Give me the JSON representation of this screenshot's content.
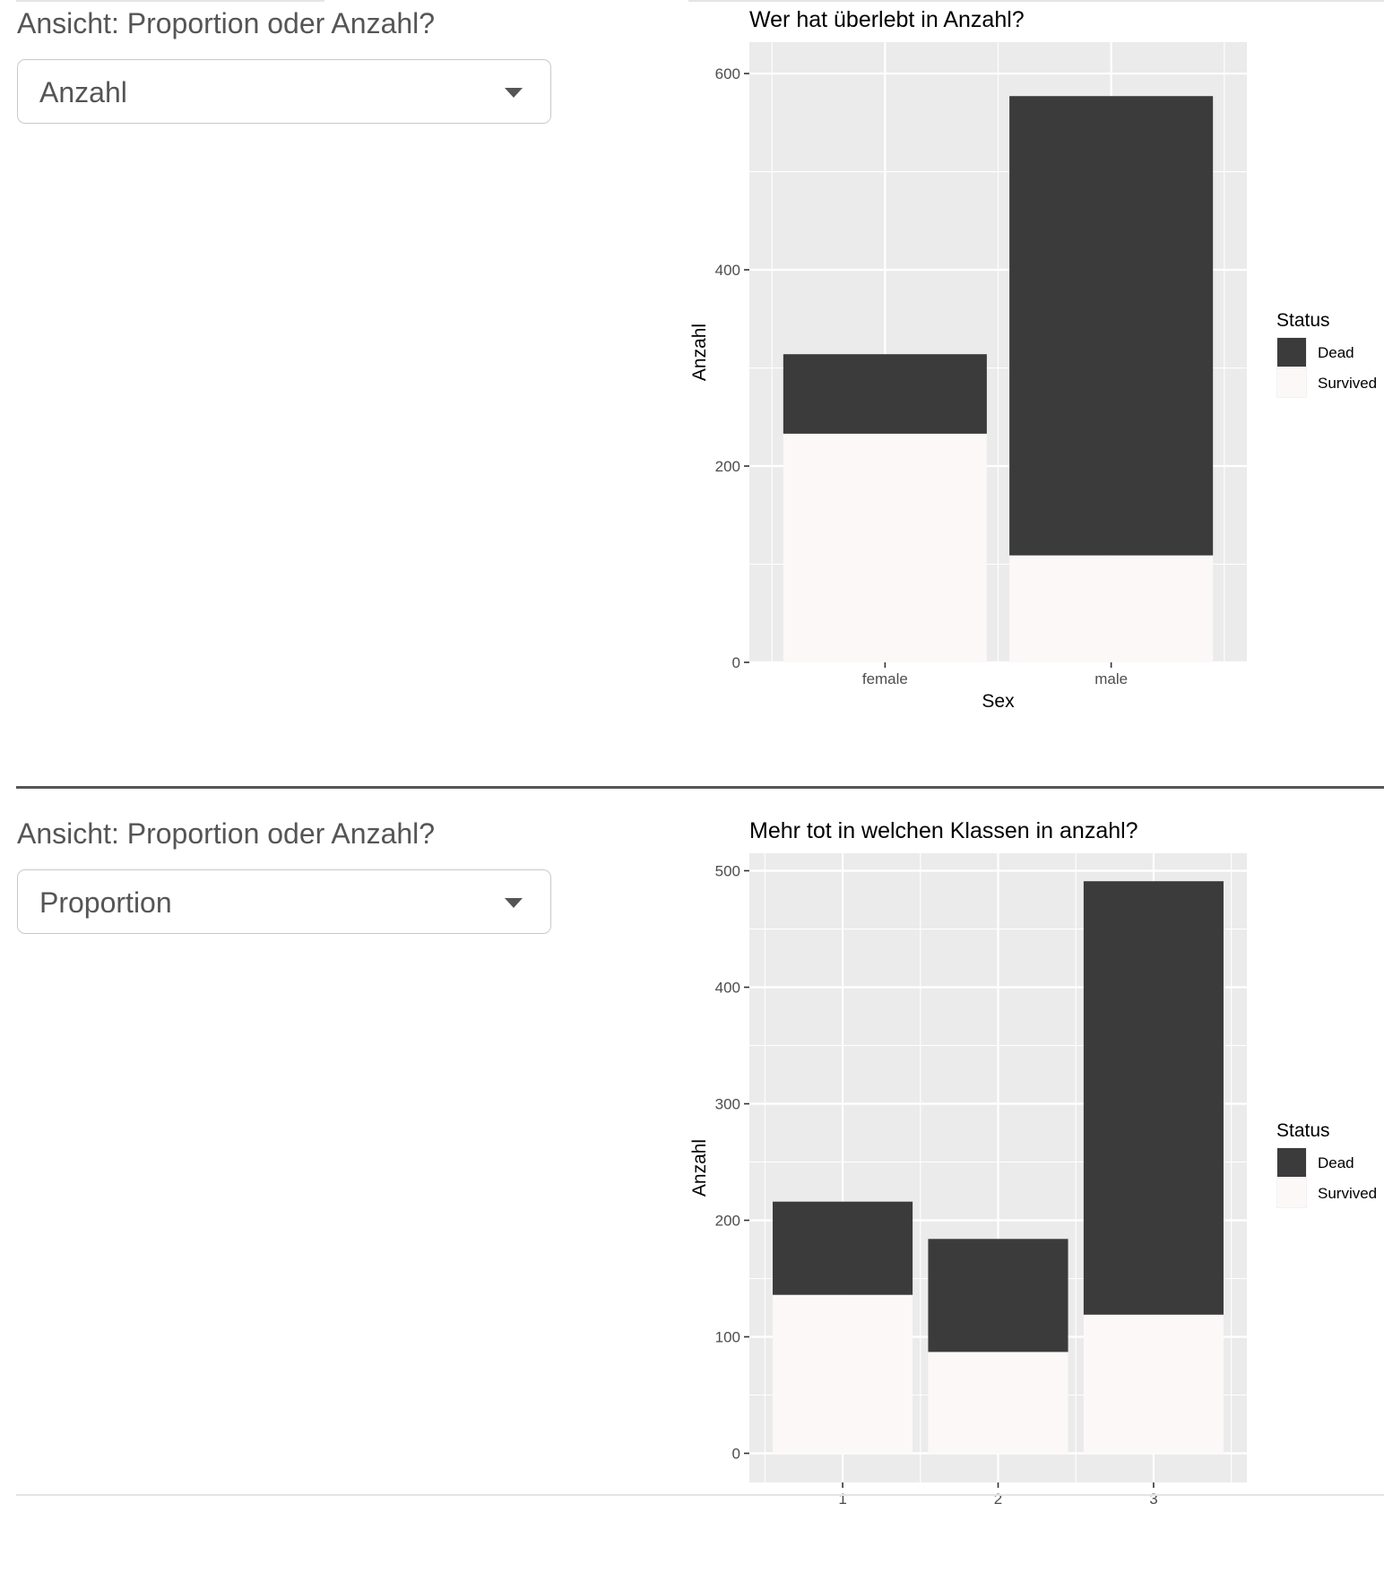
{
  "panels": [
    {
      "control_label": "Ansicht: Proportion oder Anzahl?",
      "select_value": "Anzahl",
      "chart_data": {
        "type": "bar",
        "stacked": true,
        "title": "Wer hat überlebt in Anzahl?",
        "xlabel": "Sex",
        "ylabel": "Anzahl",
        "categories": [
          "female",
          "male"
        ],
        "series": [
          {
            "name": "Survived",
            "values": [
              233,
              109
            ],
            "color": "#fcf8f8"
          },
          {
            "name": "Dead",
            "values": [
              81,
              468
            ],
            "color": "#3b3b3b"
          }
        ],
        "ylim": [
          0,
          632
        ],
        "yticks": [
          0,
          200,
          400,
          600
        ],
        "legend_title": "Status",
        "legend_entries": [
          "Dead",
          "Survived"
        ],
        "legend_position": "right",
        "panel_background": "#ebebeb",
        "grid": true
      }
    },
    {
      "control_label": "Ansicht: Proportion oder Anzahl?",
      "select_value": "Proportion",
      "chart_data": {
        "type": "bar",
        "stacked": true,
        "title": "Mehr tot in welchen Klassen in anzahl?",
        "xlabel": "",
        "ylabel": "Anzahl",
        "categories": [
          "1",
          "2",
          "3"
        ],
        "series": [
          {
            "name": "Survived",
            "values": [
              136,
              87,
              119
            ],
            "color": "#fcf8f8"
          },
          {
            "name": "Dead",
            "values": [
              80,
              97,
              372
            ],
            "color": "#3b3b3b"
          }
        ],
        "ylim": [
          -25,
          515
        ],
        "yticks": [
          0,
          100,
          200,
          300,
          400,
          500
        ],
        "legend_title": "Status",
        "legend_entries": [
          "Dead",
          "Survived"
        ],
        "legend_position": "right",
        "panel_background": "#ebebeb",
        "grid": true
      }
    }
  ]
}
